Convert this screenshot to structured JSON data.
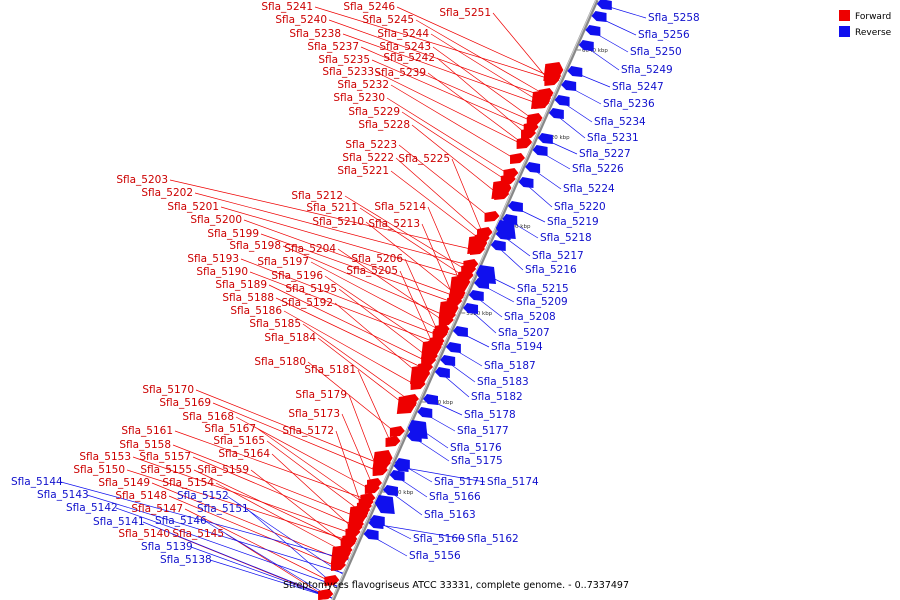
{
  "caption": "Streptomyces flavogriseus ATCC 33331, complete genome. - 0..7337497",
  "legend": [
    {
      "label": "Forward",
      "color": "#ee0000"
    },
    {
      "label": "Reverse",
      "color": "#1010ee"
    }
  ],
  "colors": {
    "forward": "#ee0000",
    "reverse": "#1010ee",
    "forward_label": "#cc0000",
    "reverse_label": "#1010cc",
    "backbone": "#888888"
  },
  "ticks": [
    "6040 kbp",
    "6020 kbp",
    "6000 kbp",
    "5980 kbp",
    "5960 kbp",
    "5940 kbp"
  ],
  "forward_genes": [
    "Sfla_5251",
    "Sfla_5246",
    "Sfla_5241",
    "Sfla_5245",
    "Sfla_5240",
    "Sfla_5244",
    "Sfla_5238",
    "Sfla_5243",
    "Sfla_5237",
    "Sfla_5242",
    "Sfla_5235",
    "Sfla_5239",
    "Sfla_5233",
    "Sfla_5232",
    "Sfla_5230",
    "Sfla_5229",
    "Sfla_5228",
    "Sfla_5223",
    "Sfla_5225",
    "Sfla_5222",
    "Sfla_5221",
    "Sfla_5203",
    "Sfla_5202",
    "Sfla_5212",
    "Sfla_5214",
    "Sfla_5211",
    "Sfla_5201",
    "Sfla_5210",
    "Sfla_5213",
    "Sfla_5200",
    "Sfla_5199",
    "Sfla_5198",
    "Sfla_5204",
    "Sfla_5206",
    "Sfla_5193",
    "Sfla_5197",
    "Sfla_5190",
    "Sfla_5196",
    "Sfla_5205",
    "Sfla_5189",
    "Sfla_5195",
    "Sfla_5188",
    "Sfla_5192",
    "Sfla_5186",
    "Sfla_5185",
    "Sfla_5184",
    "Sfla_5180",
    "Sfla_5181",
    "Sfla_5170",
    "Sfla_5179",
    "Sfla_5169",
    "Sfla_5173",
    "Sfla_5168",
    "Sfla_5167",
    "Sfla_5172",
    "Sfla_5161",
    "Sfla_5165",
    "Sfla_5158",
    "Sfla_5164",
    "Sfla_5153",
    "Sfla_5157",
    "Sfla_5150",
    "Sfla_5155",
    "Sfla_5159",
    "Sfla_5149",
    "Sfla_5154",
    "Sfla_5148",
    "Sfla_5147",
    "Sfla_5140",
    "Sfla_5145"
  ],
  "reverse_genes": [
    "Sfla_5258",
    "Sfla_5256",
    "Sfla_5250",
    "Sfla_5249",
    "Sfla_5247",
    "Sfla_5236",
    "Sfla_5234",
    "Sfla_5231",
    "Sfla_5227",
    "Sfla_5226",
    "Sfla_5224",
    "Sfla_5220",
    "Sfla_5219",
    "Sfla_5218",
    "Sfla_5217",
    "Sfla_5216",
    "Sfla_5215",
    "Sfla_5209",
    "Sfla_5208",
    "Sfla_5207",
    "Sfla_5194",
    "Sfla_5187",
    "Sfla_5183",
    "Sfla_5182",
    "Sfla_5178",
    "Sfla_5177",
    "Sfla_5176",
    "Sfla_5175",
    "Sfla_5174",
    "Sfla_5171",
    "Sfla_5166",
    "Sfla_5163",
    "Sfla_5162",
    "Sfla_5160",
    "Sfla_5156",
    "Sfla_5144",
    "Sfla_5143",
    "Sfla_5152",
    "Sfla_5142",
    "Sfla_5151",
    "Sfla_5141",
    "Sfla_5146",
    "Sfla_5139",
    "Sfla_5138"
  ]
}
